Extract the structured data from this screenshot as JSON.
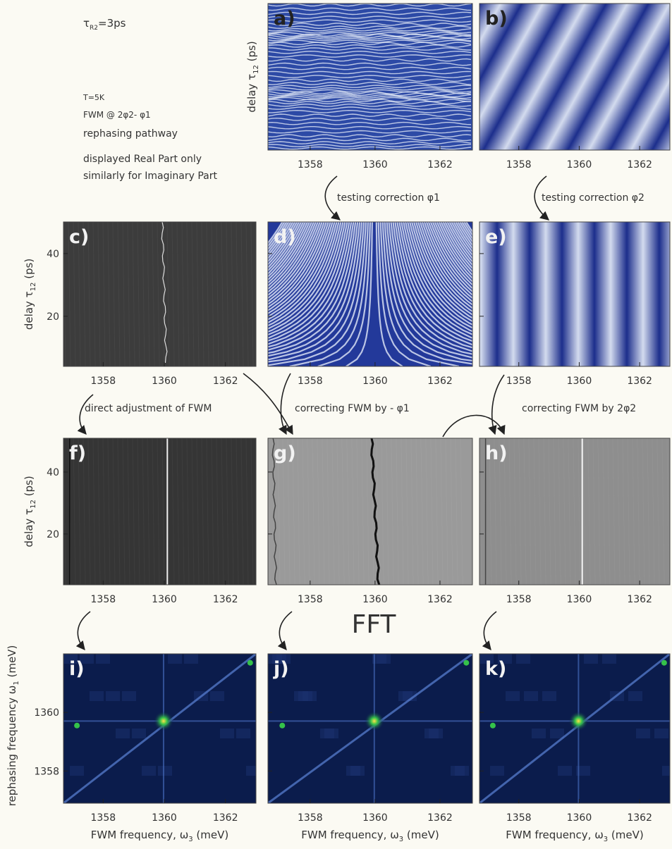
{
  "tau_note": {
    "symbol": "τ",
    "sub": "R2",
    "rest": "=3ps"
  },
  "notes": [
    "T=5K",
    "FWM @ 2φ2- φ1",
    "rephasing pathway",
    "displayed Real Part only",
    "similarly for Imaginary Part"
  ],
  "delay_label": {
    "text": "delay τ",
    "sub": "12",
    "unit": " (ps)"
  },
  "freq_y_label": {
    "text": "rephasing frequency ω",
    "sub": "1",
    "unit": " (meV)"
  },
  "freq_x_label": {
    "text": "FWM frequency, ω",
    "sub": "3",
    "unit": " (meV)"
  },
  "x_axis": {
    "xlim": [
      1356.7,
      1363.0
    ],
    "xticks": [
      1358,
      1360,
      1362
    ]
  },
  "rows": [
    {
      "panels": [
        "a)",
        "b)"
      ]
    },
    {
      "panels": [
        "c)",
        "d)",
        "e)"
      ],
      "ylim": [
        4.0,
        50.1
      ],
      "yticks": [
        20,
        40
      ]
    },
    {
      "panels": [
        "f)",
        "g)",
        "h)"
      ],
      "ylim": [
        3.6,
        50.9
      ],
      "yticks": [
        20,
        40
      ]
    },
    {
      "panels": [
        "i)",
        "j)",
        "k)"
      ],
      "ylim": [
        1356.9,
        1362.0
      ],
      "yticks": [
        1358,
        1360
      ]
    }
  ],
  "arrows": [
    "testing correction φ1",
    "testing correction φ2",
    "direct adjustment of FWM",
    "correcting FWM by - φ1",
    "correcting FWM by 2φ2"
  ],
  "fft": "FFT"
}
